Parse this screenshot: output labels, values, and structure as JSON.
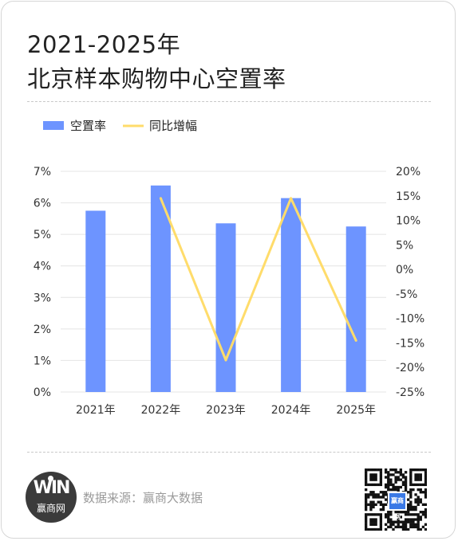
{
  "title": {
    "line1": "2021-2025年",
    "line2": "北京样本购物中心空置率"
  },
  "colors": {
    "bar": "#6d94ff",
    "line": "#ffdc6b",
    "grid": "#e4e4e4"
  },
  "chart_data": {
    "type": "bar",
    "categories": [
      "2021年",
      "2022年",
      "2023年",
      "2024年",
      "2025年"
    ],
    "series": [
      {
        "name": "空置率",
        "type": "bar",
        "axis": "left",
        "values": [
          5.75,
          6.55,
          5.35,
          6.15,
          5.25
        ]
      },
      {
        "name": "同比增幅",
        "type": "line",
        "axis": "right",
        "values": [
          null,
          14.5,
          -18.5,
          14.5,
          -14.5
        ]
      }
    ],
    "y_left": {
      "min": 0,
      "max": 7,
      "ticks": [
        "0%",
        "1%",
        "2%",
        "3%",
        "4%",
        "5%",
        "6%",
        "7%"
      ]
    },
    "y_right": {
      "min": -25,
      "max": 20,
      "ticks": [
        "-25%",
        "-20%",
        "-15%",
        "-10%",
        "-5%",
        "0%",
        "5%",
        "10%",
        "15%",
        "20%"
      ]
    },
    "legend": "top-left",
    "grid": true
  },
  "footer": {
    "logo_text": "赢商网",
    "logo_mark": "WIN",
    "source": "数据来源：赢商大数据",
    "qr_label": "赢商网"
  }
}
